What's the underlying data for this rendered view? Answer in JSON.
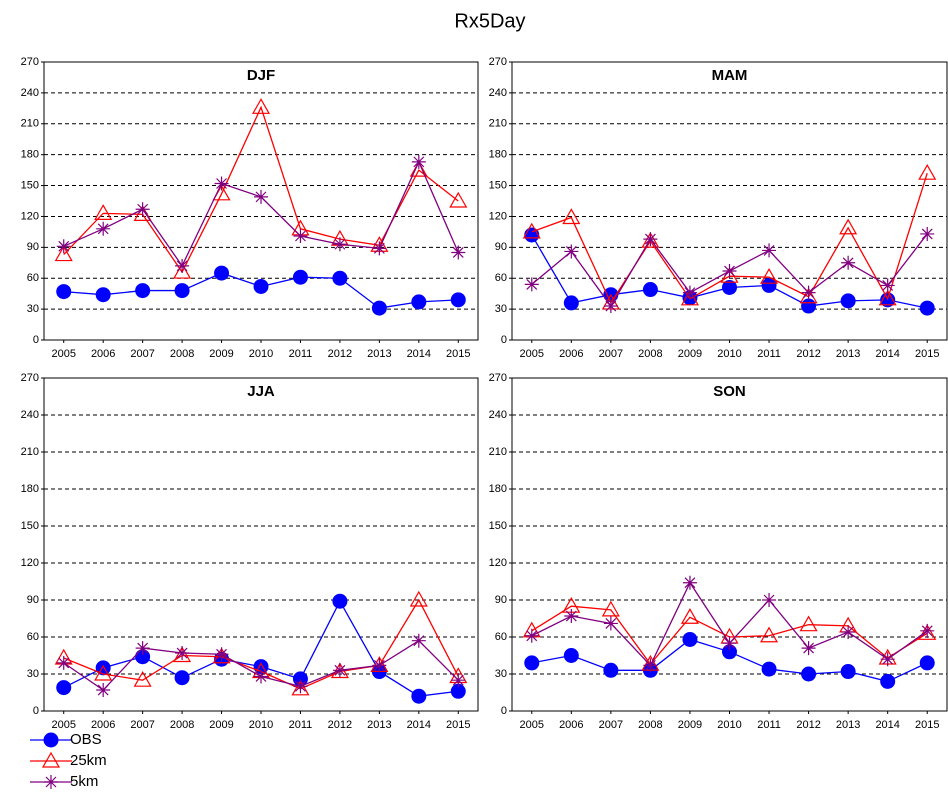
{
  "title": "Rx5Day",
  "chart_data": [
    {
      "type": "line",
      "title": "DJF",
      "categories": [
        "2005",
        "2006",
        "2007",
        "2008",
        "2009",
        "2010",
        "2011",
        "2012",
        "2013",
        "2014",
        "2015"
      ],
      "ylim": [
        0,
        270
      ],
      "yticks": [
        0,
        30,
        60,
        90,
        120,
        150,
        180,
        210,
        240,
        270
      ],
      "grid": true,
      "series": [
        {
          "name": "OBS",
          "color": "#0000ff",
          "marker": "circle",
          "values": [
            47,
            44,
            48,
            48,
            65,
            52,
            61,
            60,
            31,
            37,
            39
          ]
        },
        {
          "name": "25km",
          "color": "#ff0000",
          "marker": "triangle",
          "values": [
            83,
            123,
            122,
            66,
            142,
            226,
            108,
            98,
            92,
            165,
            135
          ]
        },
        {
          "name": "5km",
          "color": "#800080",
          "marker": "asterisk",
          "values": [
            91,
            108,
            127,
            72,
            152,
            139,
            101,
            93,
            89,
            173,
            85
          ]
        }
      ]
    },
    {
      "type": "line",
      "title": "MAM",
      "categories": [
        "2005",
        "2006",
        "2007",
        "2008",
        "2009",
        "2010",
        "2011",
        "2012",
        "2013",
        "2014",
        "2015"
      ],
      "ylim": [
        0,
        270
      ],
      "yticks": [
        0,
        30,
        60,
        90,
        120,
        150,
        180,
        210,
        240,
        270
      ],
      "grid": true,
      "series": [
        {
          "color": "#0000ff",
          "marker": "circle",
          "values": [
            102,
            36,
            44,
            49,
            41,
            51,
            53,
            33,
            38,
            39,
            31
          ]
        },
        {
          "color": "#ff0000",
          "marker": "triangle",
          "values": [
            105,
            119,
            36,
            96,
            40,
            62,
            61,
            42,
            109,
            40,
            162
          ]
        },
        {
          "color": "#800080",
          "marker": "asterisk",
          "values": [
            54,
            86,
            33,
            98,
            46,
            67,
            87,
            46,
            75,
            53,
            103
          ]
        }
      ]
    },
    {
      "type": "line",
      "title": "JJA",
      "categories": [
        "2005",
        "2006",
        "2007",
        "2008",
        "2009",
        "2010",
        "2011",
        "2012",
        "2013",
        "2014",
        "2015"
      ],
      "ylim": [
        0,
        270
      ],
      "yticks": [
        0,
        30,
        60,
        90,
        120,
        150,
        180,
        210,
        240,
        270
      ],
      "grid": true,
      "series": [
        {
          "color": "#0000ff",
          "marker": "circle",
          "values": [
            19,
            35,
            44,
            27,
            42,
            36,
            26,
            89,
            32,
            12,
            16
          ]
        },
        {
          "color": "#ff0000",
          "marker": "triangle",
          "values": [
            43,
            30,
            25,
            45,
            44,
            32,
            18,
            32,
            37,
            90,
            28
          ]
        },
        {
          "color": "#800080",
          "marker": "asterisk",
          "values": [
            39,
            17,
            51,
            47,
            46,
            28,
            20,
            33,
            37,
            57,
            25
          ]
        }
      ]
    },
    {
      "type": "line",
      "title": "SON",
      "categories": [
        "2005",
        "2006",
        "2007",
        "2008",
        "2009",
        "2010",
        "2011",
        "2012",
        "2013",
        "2014",
        "2015"
      ],
      "ylim": [
        0,
        270
      ],
      "yticks": [
        0,
        30,
        60,
        90,
        120,
        150,
        180,
        210,
        240,
        270
      ],
      "grid": true,
      "series": [
        {
          "color": "#0000ff",
          "marker": "circle",
          "values": [
            39,
            45,
            33,
            33,
            58,
            48,
            34,
            30,
            32,
            24,
            39
          ]
        },
        {
          "color": "#ff0000",
          "marker": "triangle",
          "values": [
            65,
            85,
            82,
            38,
            76,
            60,
            61,
            70,
            69,
            43,
            63
          ]
        },
        {
          "color": "#800080",
          "marker": "asterisk",
          "values": [
            61,
            77,
            71,
            37,
            104,
            55,
            90,
            51,
            64,
            42,
            65
          ]
        }
      ]
    }
  ]
}
